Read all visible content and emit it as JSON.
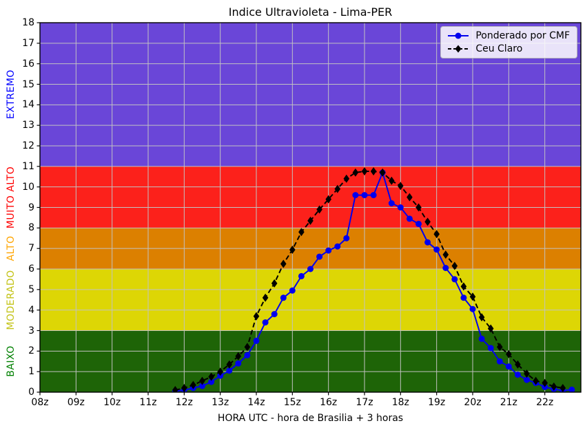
{
  "title": "Indice Ultravioleta - Lima-PER",
  "axes": {
    "xlabel": "HORA UTC - hora de Brasilia + 3 horas",
    "xlim": [
      8,
      23
    ],
    "ylim": [
      0,
      18
    ],
    "x_ticks": [
      {
        "value": 8,
        "label": "08z"
      },
      {
        "value": 9,
        "label": "09z"
      },
      {
        "value": 10,
        "label": "10z"
      },
      {
        "value": 11,
        "label": "11z"
      },
      {
        "value": 12,
        "label": "12z"
      },
      {
        "value": 13,
        "label": "13z"
      },
      {
        "value": 14,
        "label": "14z"
      },
      {
        "value": 15,
        "label": "15z"
      },
      {
        "value": 16,
        "label": "16z"
      },
      {
        "value": 17,
        "label": "17z"
      },
      {
        "value": 18,
        "label": "18z"
      },
      {
        "value": 19,
        "label": "19z"
      },
      {
        "value": 20,
        "label": "20z"
      },
      {
        "value": 21,
        "label": "21z"
      },
      {
        "value": 22,
        "label": "22z"
      }
    ],
    "y_ticks": [
      0,
      1,
      2,
      3,
      4,
      5,
      6,
      7,
      8,
      9,
      10,
      11,
      12,
      13,
      14,
      15,
      16,
      17,
      18
    ],
    "grid_color": "#c2c2c2",
    "spine_color": "#000000"
  },
  "bands": [
    {
      "name": "BAIXO",
      "from": 0,
      "to": 3,
      "color": "#1e6407",
      "label_color": "#008000"
    },
    {
      "name": "MODERADO",
      "from": 3,
      "to": 6,
      "color": "#ddd605",
      "label_color": "#c3c316"
    },
    {
      "name": "ALTO",
      "from": 6,
      "to": 8,
      "color": "#dc8000",
      "label_color": "#ffa500"
    },
    {
      "name": "MUITO ALTO",
      "from": 8,
      "to": 11,
      "color": "#fc211b",
      "label_color": "#ff0000"
    },
    {
      "name": "EXTREMO",
      "from": 11,
      "to": 18,
      "color": "#6a46d8",
      "label_color": "#0000ff"
    }
  ],
  "legend": [
    {
      "label": "Ponderado por CMF",
      "color": "#0000ee",
      "marker": "circle",
      "line": "solid"
    },
    {
      "label": "Ceu Claro",
      "color": "#000000",
      "marker": "diamond",
      "line": "dashed"
    }
  ],
  "chart_data": {
    "type": "line",
    "title": "Indice Ultravioleta - Lima-PER",
    "xlabel": "HORA UTC - hora de Brasilia + 3 horas",
    "ylabel": "",
    "xlim": [
      8,
      23
    ],
    "ylim": [
      0,
      18
    ],
    "grid": true,
    "legend_position": "upper right",
    "x_units": "hours UTC (decimal)",
    "series": [
      {
        "name": "Ponderado por CMF",
        "color": "#0000ee",
        "marker": "circle",
        "line": "solid",
        "x": [
          11.75,
          12.0,
          12.25,
          12.5,
          12.75,
          13.0,
          13.25,
          13.5,
          13.75,
          14.0,
          14.25,
          14.5,
          14.75,
          15.0,
          15.25,
          15.5,
          15.75,
          16.0,
          16.25,
          16.5,
          16.75,
          17.0,
          17.25,
          17.5,
          17.75,
          18.0,
          18.25,
          18.5,
          18.75,
          19.0,
          19.25,
          19.5,
          19.75,
          20.0,
          20.25,
          20.5,
          20.75,
          21.0,
          21.25,
          21.5,
          21.75,
          22.0,
          22.25,
          22.5,
          22.75
        ],
        "y": [
          0.05,
          0.1,
          0.2,
          0.3,
          0.5,
          0.8,
          1.05,
          1.4,
          1.8,
          2.5,
          3.4,
          3.8,
          4.6,
          4.95,
          5.65,
          6.0,
          6.6,
          6.9,
          7.1,
          7.5,
          9.6,
          9.6,
          9.6,
          10.7,
          9.2,
          9.0,
          8.45,
          8.2,
          7.3,
          6.95,
          6.05,
          5.5,
          4.6,
          4.05,
          2.6,
          2.15,
          1.5,
          1.25,
          0.85,
          0.6,
          0.45,
          0.25,
          0.15,
          0.07,
          0.12
        ]
      },
      {
        "name": "Ceu Claro",
        "color": "#000000",
        "marker": "diamond",
        "line": "dashed",
        "x": [
          11.75,
          12.0,
          12.25,
          12.5,
          12.75,
          13.0,
          13.25,
          13.5,
          13.75,
          14.0,
          14.25,
          14.5,
          14.75,
          15.0,
          15.25,
          15.5,
          15.75,
          16.0,
          16.25,
          16.5,
          16.75,
          17.0,
          17.25,
          17.5,
          17.75,
          18.0,
          18.25,
          18.5,
          18.75,
          19.0,
          19.25,
          19.5,
          19.75,
          20.0,
          20.25,
          20.5,
          20.75,
          21.0,
          21.25,
          21.5,
          21.75,
          22.0,
          22.25,
          22.5
        ],
        "y": [
          0.1,
          0.2,
          0.35,
          0.55,
          0.75,
          1.0,
          1.35,
          1.75,
          2.2,
          3.7,
          4.6,
          5.3,
          6.25,
          6.94,
          7.8,
          8.35,
          8.9,
          9.4,
          9.9,
          10.4,
          10.7,
          10.76,
          10.76,
          10.7,
          10.3,
          10.05,
          9.5,
          9.0,
          8.3,
          7.7,
          6.7,
          6.15,
          5.15,
          4.65,
          3.65,
          3.1,
          2.2,
          1.85,
          1.35,
          0.9,
          0.55,
          0.45,
          0.27,
          0.2
        ]
      }
    ]
  }
}
